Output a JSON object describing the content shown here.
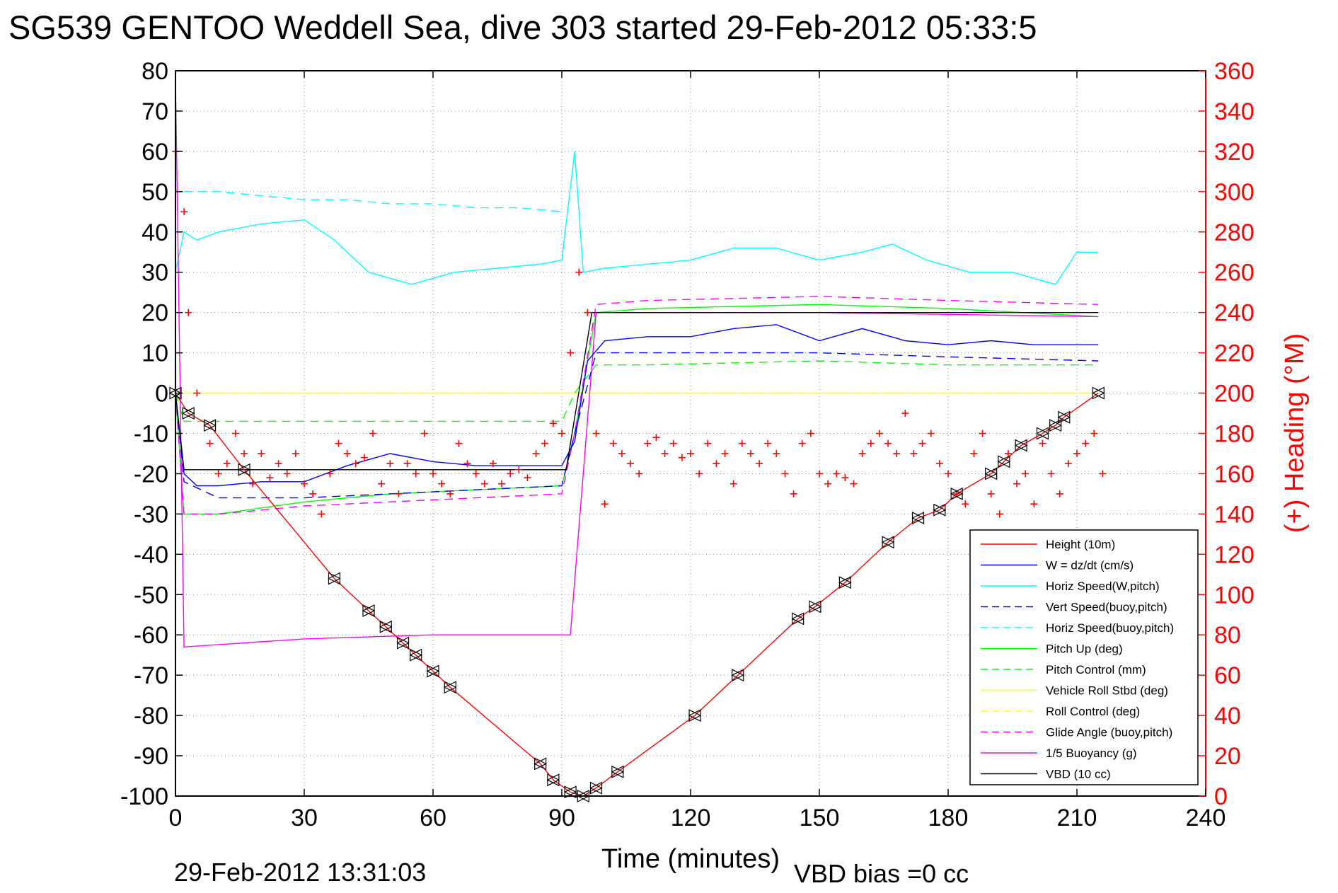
{
  "chart_data": {
    "type": "line",
    "title": "SG539 GENTOO Weddell Sea, dive 303 started 29-Feb-2012 05:33:5",
    "xlabel": "Time (minutes)",
    "ylabel": "",
    "ylabel_right": "(+) Heading (°M)",
    "xlim": [
      0,
      240
    ],
    "ylim": [
      -100,
      80
    ],
    "ylim_right": [
      0,
      360
    ],
    "xticks": [
      0,
      30,
      60,
      90,
      120,
      150,
      180,
      210,
      240
    ],
    "yticks": [
      80,
      70,
      60,
      50,
      40,
      30,
      20,
      10,
      0,
      -10,
      -20,
      -30,
      -40,
      -50,
      -60,
      -70,
      -80,
      -90,
      -100
    ],
    "yticks_right": [
      360,
      340,
      320,
      300,
      280,
      260,
      240,
      220,
      200,
      180,
      160,
      140,
      120,
      100,
      80,
      60,
      40,
      20,
      0
    ],
    "grid": true,
    "legend_position": "bottom-right",
    "footer_left": "29-Feb-2012 13:31:03",
    "footer_bias": "VBD bias =0 cc",
    "colors": {
      "red": "#ff0000",
      "blue": "#0000ff",
      "cyan": "#00ffff",
      "green": "#00ff00",
      "yellow": "#ffff00",
      "magenta": "#ff00ff",
      "black": "#000000"
    },
    "series": [
      {
        "name": "Height (10m)",
        "color": "#ff0000",
        "style": "solid",
        "x": [
          0,
          3,
          8,
          16,
          37,
          45,
          49,
          53,
          56,
          60,
          64,
          85,
          88,
          92,
          95,
          98,
          103,
          121,
          131,
          145,
          149,
          156,
          166,
          173,
          178,
          182,
          190,
          193,
          197,
          202,
          205,
          207,
          215
        ],
        "y": [
          0,
          -5,
          -8,
          -19,
          -46,
          -54,
          -58,
          -62,
          -65,
          -69,
          -73,
          -92,
          -96,
          -99,
          -100,
          -98,
          -94,
          -80,
          -70,
          -56,
          -53,
          -47,
          -37,
          -31,
          -29,
          -25,
          -20,
          -17,
          -13,
          -10,
          -8,
          -6,
          0
        ]
      },
      {
        "name": "W = dz/dt (cm/s)",
        "color": "#0000ff",
        "style": "solid",
        "x": [
          0,
          2,
          5,
          10,
          20,
          30,
          40,
          50,
          60,
          70,
          80,
          90,
          93,
          96,
          100,
          110,
          120,
          130,
          140,
          150,
          160,
          170,
          180,
          190,
          200,
          210,
          215
        ],
        "y": [
          0,
          -20,
          -23,
          -23,
          -22,
          -22,
          -18,
          -15,
          -17,
          -18,
          -18,
          -18,
          -12,
          8,
          13,
          14,
          14,
          16,
          17,
          13,
          16,
          13,
          12,
          13,
          12,
          12,
          12
        ]
      },
      {
        "name": "Horiz Speed(W,pitch)",
        "color": "#00ffff",
        "style": "solid",
        "x": [
          0,
          2,
          5,
          10,
          20,
          30,
          37,
          45,
          55,
          65,
          75,
          85,
          90,
          93,
          95,
          100,
          110,
          120,
          130,
          140,
          150,
          160,
          167,
          175,
          185,
          195,
          205,
          210,
          215
        ],
        "y": [
          30,
          40,
          38,
          40,
          42,
          43,
          38,
          30,
          27,
          30,
          31,
          32,
          33,
          60,
          30,
          31,
          32,
          33,
          36,
          36,
          33,
          35,
          37,
          33,
          30,
          30,
          27,
          35,
          35
        ]
      },
      {
        "name": "Vert Speed(buoy,pitch)",
        "color": "#0000ff",
        "style": "dashed",
        "x": [
          0,
          2,
          10,
          30,
          50,
          70,
          90,
          93,
          98,
          110,
          150,
          180,
          215
        ],
        "y": [
          0,
          -22,
          -26,
          -26,
          -25,
          -24,
          -23,
          -10,
          10,
          10,
          10,
          9,
          8
        ]
      },
      {
        "name": "Horiz Speed(buoy,pitch)",
        "color": "#00ffff",
        "style": "dashed",
        "x": [
          2,
          10,
          20,
          30,
          40,
          50,
          60,
          70,
          80,
          90
        ],
        "y": [
          50,
          50,
          49,
          48,
          48,
          47,
          47,
          46,
          46,
          45
        ]
      },
      {
        "name": "Pitch Up (deg)",
        "color": "#00ff00",
        "style": "solid",
        "x": [
          0,
          2,
          10,
          30,
          50,
          70,
          90,
          93,
          98,
          110,
          150,
          180,
          215
        ],
        "y": [
          0,
          -30,
          -30,
          -27,
          -25,
          -24,
          -23,
          -10,
          20,
          21,
          22,
          21,
          19
        ]
      },
      {
        "name": "Pitch Control (mm)",
        "color": "#00ff00",
        "style": "dashed",
        "x": [
          0,
          2,
          10,
          30,
          50,
          70,
          90,
          93,
          98,
          110,
          150,
          180,
          215
        ],
        "y": [
          0,
          -7,
          -7,
          -7,
          -7,
          -7,
          -7,
          0,
          7,
          7,
          8,
          7,
          7
        ]
      },
      {
        "name": "Vehicle Roll Stbd (deg)",
        "color": "#ffff00",
        "style": "solid",
        "x": [
          0,
          10,
          30,
          60,
          90,
          100,
          130,
          160,
          190,
          215
        ],
        "y": [
          0,
          0,
          0,
          0,
          0,
          0,
          0,
          0,
          0,
          0
        ]
      },
      {
        "name": "Roll Control (deg)",
        "color": "#ffff00",
        "style": "dashed",
        "x": [
          0,
          10,
          30,
          60,
          90,
          100,
          130,
          160,
          190,
          215
        ],
        "y": [
          0,
          0,
          0,
          0,
          0,
          0,
          0,
          0,
          0,
          0
        ]
      },
      {
        "name": "Glide Angle (buoy,pitch)",
        "color": "#ff00ff",
        "style": "dashed",
        "x": [
          0,
          2,
          10,
          30,
          50,
          70,
          90,
          93,
          98,
          110,
          150,
          180,
          215
        ],
        "y": [
          0,
          -30,
          -30,
          -28,
          -27,
          -26,
          -25,
          -10,
          22,
          23,
          24,
          23,
          22
        ]
      },
      {
        "name": "1/5 Buoyancy (g)",
        "color": "#ff00ff",
        "style": "solid",
        "x": [
          0,
          2,
          30,
          60,
          90,
          92,
          98,
          150,
          215
        ],
        "y": [
          78,
          -63,
          -61,
          -60,
          -60,
          -60,
          20,
          20,
          19
        ]
      },
      {
        "name": "VBD (10 cc)",
        "color": "#000000",
        "style": "solid",
        "x": [
          0,
          2,
          10,
          30,
          60,
          90,
          91,
          97,
          120,
          150,
          215
        ],
        "y": [
          0,
          -19,
          -19,
          -19,
          -19,
          -19,
          -19,
          20,
          20,
          20,
          20
        ]
      },
      {
        "name": "",
        "color": "#ff0000",
        "style": "markers",
        "axis": "right",
        "x": [
          0,
          2,
          3,
          5,
          8,
          10,
          12,
          14,
          16,
          18,
          20,
          22,
          24,
          26,
          28,
          30,
          32,
          34,
          36,
          38,
          40,
          42,
          44,
          46,
          48,
          50,
          52,
          54,
          56,
          58,
          60,
          62,
          64,
          66,
          68,
          70,
          72,
          74,
          76,
          78,
          80,
          82,
          84,
          86,
          88,
          90,
          92,
          94,
          96,
          98,
          100,
          102,
          104,
          106,
          108,
          110,
          112,
          114,
          116,
          118,
          120,
          122,
          124,
          126,
          128,
          130,
          132,
          134,
          136,
          138,
          140,
          142,
          144,
          146,
          148,
          150,
          152,
          154,
          156,
          158,
          160,
          162,
          164,
          166,
          168,
          170,
          172,
          174,
          176,
          178,
          180,
          182,
          184,
          186,
          188,
          190,
          192,
          194,
          196,
          198,
          200,
          202,
          204,
          206,
          208,
          210,
          212,
          214,
          216
        ],
        "y": [
          320,
          290,
          240,
          200,
          175,
          160,
          165,
          180,
          170,
          155,
          170,
          158,
          165,
          160,
          170,
          155,
          150,
          140,
          160,
          175,
          170,
          165,
          168,
          180,
          155,
          165,
          150,
          165,
          160,
          180,
          160,
          155,
          150,
          175,
          165,
          160,
          155,
          165,
          155,
          160,
          162,
          158,
          170,
          175,
          185,
          180,
          220,
          260,
          240,
          180,
          145,
          175,
          170,
          165,
          160,
          175,
          178,
          170,
          175,
          168,
          170,
          160,
          175,
          165,
          170,
          155,
          175,
          170,
          165,
          175,
          170,
          160,
          150,
          175,
          180,
          160,
          155,
          160,
          158,
          155,
          170,
          175,
          180,
          175,
          170,
          190,
          170,
          175,
          180,
          165,
          160,
          150,
          145,
          170,
          180,
          150,
          140,
          170,
          155,
          160,
          145,
          175,
          160,
          150,
          165,
          170,
          175,
          180,
          160
        ]
      }
    ]
  }
}
